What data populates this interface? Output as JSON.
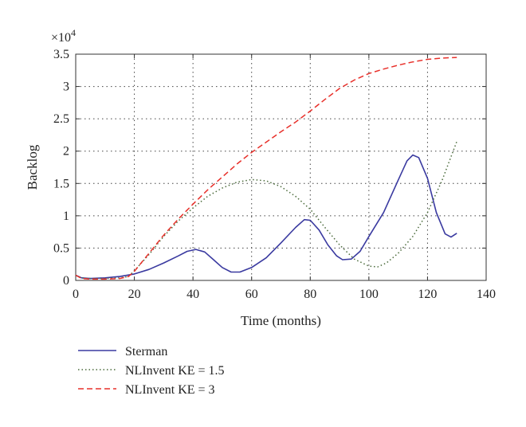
{
  "chart_data": {
    "type": "line",
    "xlabel": "Time (months)",
    "ylabel": "Backlog",
    "xlim": [
      0,
      140
    ],
    "ylim": [
      0,
      3.5
    ],
    "y_multiplier_label": "×10",
    "y_multiplier_exponent": "4",
    "xticks": [
      "0",
      "20",
      "40",
      "60",
      "80",
      "100",
      "120",
      "140"
    ],
    "yticks": [
      "0",
      "0.5",
      "1",
      "1.5",
      "2",
      "2.5",
      "3",
      "3.5"
    ],
    "grid": true,
    "legend_position": "bottom-left",
    "series": [
      {
        "name": "Sterman",
        "color": "#3a3aa0",
        "dash": "solid",
        "points": [
          [
            0,
            0.08
          ],
          [
            2,
            0.04
          ],
          [
            5,
            0.03
          ],
          [
            10,
            0.04
          ],
          [
            15,
            0.06
          ],
          [
            20,
            0.1
          ],
          [
            25,
            0.17
          ],
          [
            30,
            0.27
          ],
          [
            35,
            0.38
          ],
          [
            38,
            0.45
          ],
          [
            41,
            0.48
          ],
          [
            44,
            0.44
          ],
          [
            47,
            0.32
          ],
          [
            50,
            0.2
          ],
          [
            53,
            0.13
          ],
          [
            56,
            0.13
          ],
          [
            60,
            0.2
          ],
          [
            65,
            0.35
          ],
          [
            70,
            0.58
          ],
          [
            75,
            0.82
          ],
          [
            78,
            0.94
          ],
          [
            80,
            0.93
          ],
          [
            83,
            0.78
          ],
          [
            86,
            0.55
          ],
          [
            89,
            0.38
          ],
          [
            91,
            0.32
          ],
          [
            94,
            0.33
          ],
          [
            97,
            0.45
          ],
          [
            100,
            0.68
          ],
          [
            105,
            1.05
          ],
          [
            110,
            1.55
          ],
          [
            113,
            1.85
          ],
          [
            115,
            1.94
          ],
          [
            117,
            1.9
          ],
          [
            120,
            1.58
          ],
          [
            123,
            1.05
          ],
          [
            126,
            0.72
          ],
          [
            128,
            0.67
          ],
          [
            130,
            0.73
          ]
        ]
      },
      {
        "name": "NLInvent KE = 1.5",
        "color": "#4a6a3a",
        "dash": "dotted",
        "points": [
          [
            0,
            0.08
          ],
          [
            2,
            0.04
          ],
          [
            5,
            0.03
          ],
          [
            10,
            0.03
          ],
          [
            15,
            0.04
          ],
          [
            18,
            0.06
          ],
          [
            20,
            0.15
          ],
          [
            25,
            0.4
          ],
          [
            30,
            0.68
          ],
          [
            35,
            0.92
          ],
          [
            40,
            1.12
          ],
          [
            45,
            1.3
          ],
          [
            50,
            1.43
          ],
          [
            55,
            1.52
          ],
          [
            60,
            1.56
          ],
          [
            65,
            1.54
          ],
          [
            70,
            1.45
          ],
          [
            75,
            1.3
          ],
          [
            80,
            1.1
          ],
          [
            85,
            0.82
          ],
          [
            90,
            0.55
          ],
          [
            95,
            0.33
          ],
          [
            100,
            0.22
          ],
          [
            103,
            0.21
          ],
          [
            106,
            0.27
          ],
          [
            110,
            0.42
          ],
          [
            115,
            0.68
          ],
          [
            120,
            1.05
          ],
          [
            125,
            1.55
          ],
          [
            130,
            2.15
          ]
        ]
      },
      {
        "name": "NLInvent KE = 3",
        "color": "#e8302a",
        "dash": "dashed",
        "points": [
          [
            0,
            0.08
          ],
          [
            2,
            0.03
          ],
          [
            5,
            0.02
          ],
          [
            10,
            0.02
          ],
          [
            15,
            0.03
          ],
          [
            18,
            0.06
          ],
          [
            20,
            0.14
          ],
          [
            25,
            0.42
          ],
          [
            30,
            0.7
          ],
          [
            35,
            0.95
          ],
          [
            40,
            1.18
          ],
          [
            45,
            1.4
          ],
          [
            50,
            1.6
          ],
          [
            55,
            1.8
          ],
          [
            60,
            1.98
          ],
          [
            65,
            2.14
          ],
          [
            70,
            2.3
          ],
          [
            75,
            2.45
          ],
          [
            80,
            2.62
          ],
          [
            85,
            2.8
          ],
          [
            90,
            2.97
          ],
          [
            95,
            3.1
          ],
          [
            100,
            3.2
          ],
          [
            105,
            3.27
          ],
          [
            110,
            3.33
          ],
          [
            115,
            3.38
          ],
          [
            120,
            3.42
          ],
          [
            125,
            3.44
          ],
          [
            130,
            3.45
          ]
        ]
      }
    ]
  }
}
